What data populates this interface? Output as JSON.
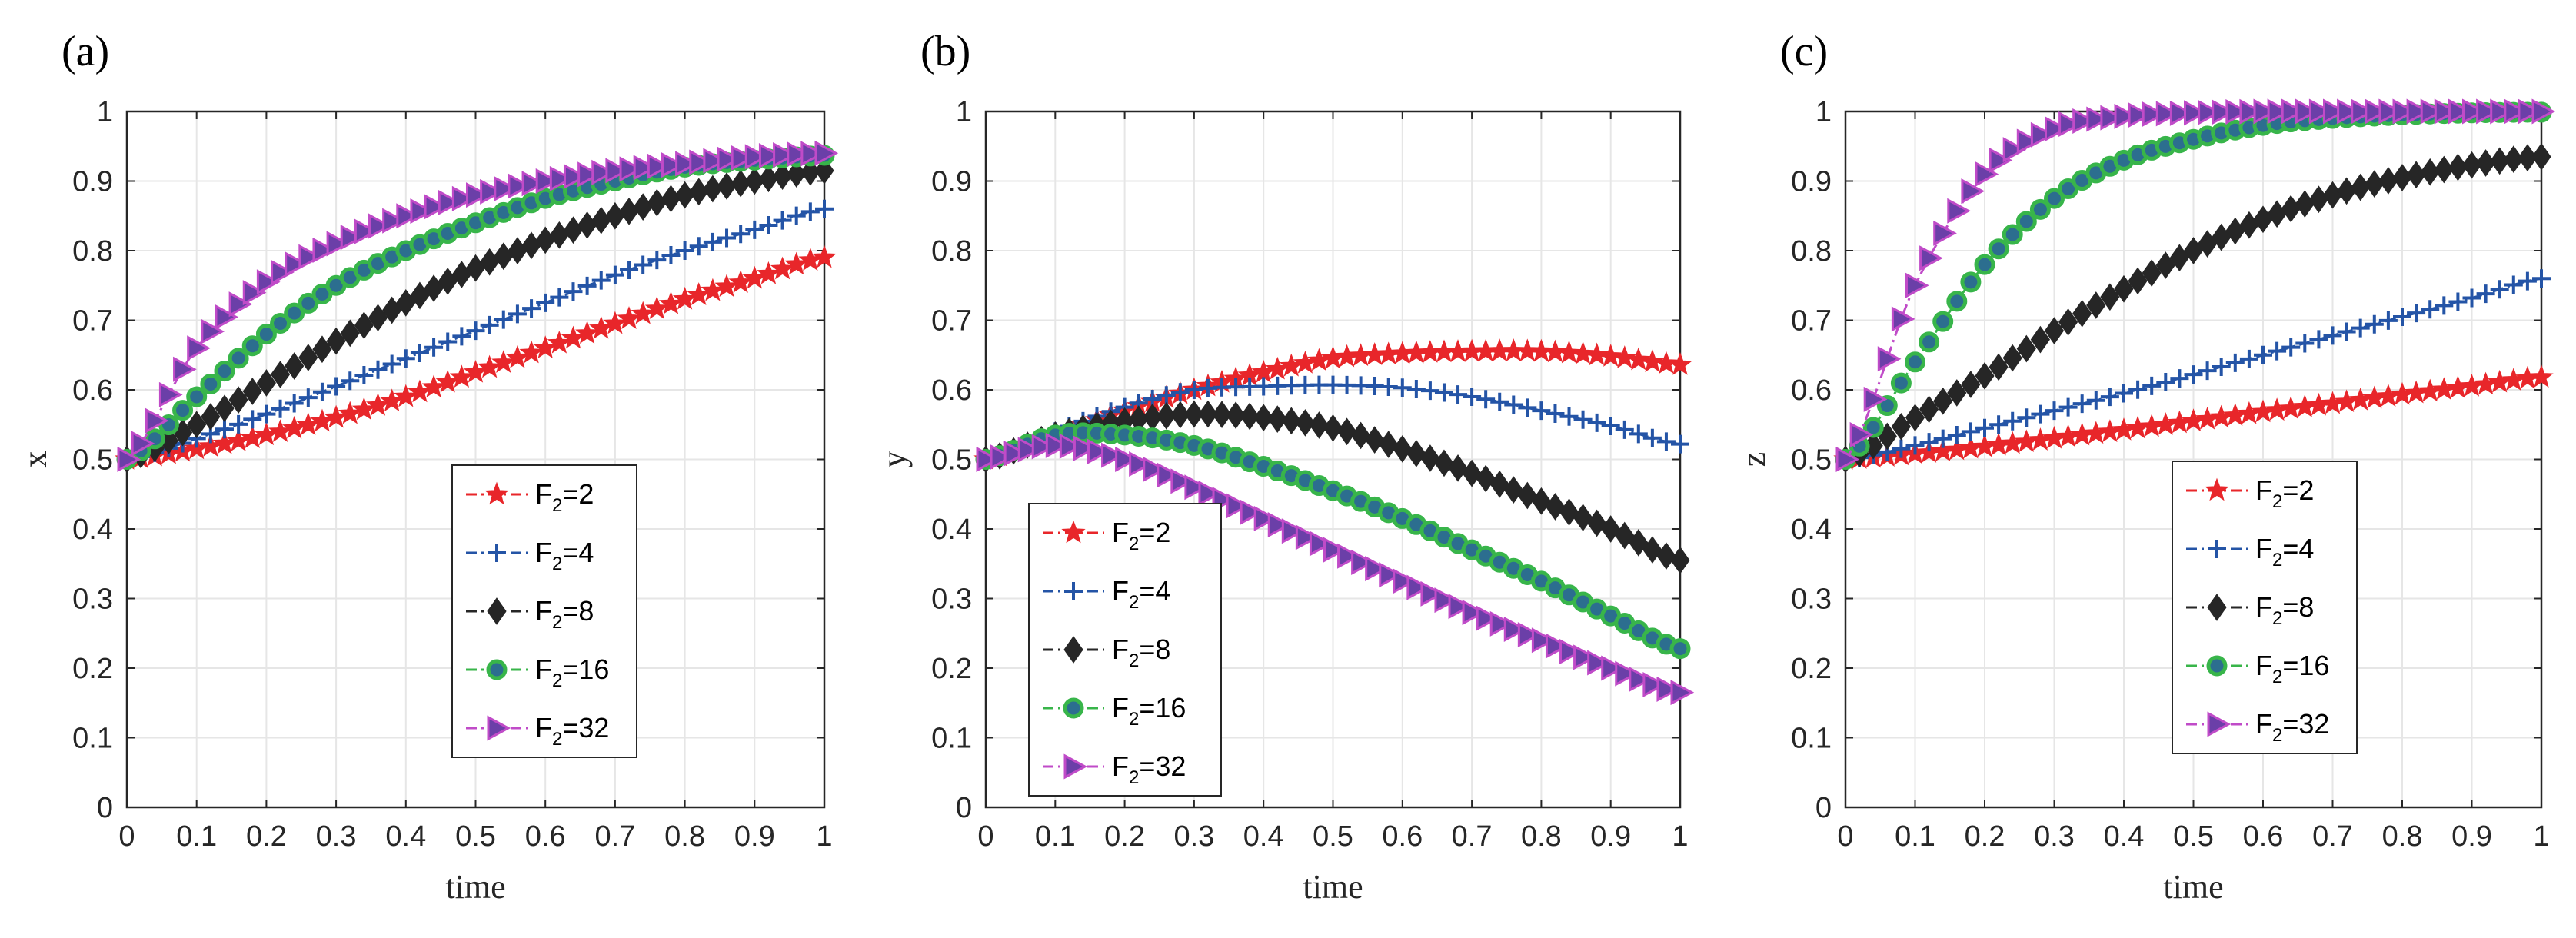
{
  "chart_data": [
    {
      "type": "line",
      "panel_label": "(a)",
      "xlabel": "time",
      "ylabel": "x",
      "xlim": [
        0,
        1
      ],
      "ylim": [
        0,
        1
      ],
      "xticks": [
        "0",
        "0.1",
        "0.2",
        "0.3",
        "0.4",
        "0.5",
        "0.6",
        "0.7",
        "0.8",
        "0.9",
        "1"
      ],
      "yticks": [
        "0",
        "0.1",
        "0.2",
        "0.3",
        "0.4",
        "0.5",
        "0.6",
        "0.7",
        "0.8",
        "0.9",
        "1"
      ],
      "grid": true,
      "legend_position": "lower-center",
      "x": [
        0,
        0.1,
        0.2,
        0.3,
        0.4,
        0.5,
        0.6,
        0.7,
        0.8,
        0.9,
        1.0
      ],
      "series": [
        {
          "name": "F2=2",
          "legend_base": "F",
          "legend_sub": "2",
          "legend_rest": "=2",
          "color": "#e8262a",
          "marker": "star",
          "values": [
            0.5,
            0.515,
            0.535,
            0.56,
            0.59,
            0.625,
            0.66,
            0.695,
            0.73,
            0.76,
            0.79
          ]
        },
        {
          "name": "F2=4",
          "legend_base": "F",
          "legend_sub": "2",
          "legend_rest": "=4",
          "color": "#2454a6",
          "marker": "plus",
          "values": [
            0.5,
            0.53,
            0.565,
            0.605,
            0.645,
            0.685,
            0.725,
            0.765,
            0.8,
            0.83,
            0.86
          ]
        },
        {
          "name": "F2=8",
          "legend_base": "F",
          "legend_sub": "2",
          "legend_rest": "=8",
          "color": "#262626",
          "marker": "diamond",
          "values": [
            0.5,
            0.55,
            0.61,
            0.67,
            0.725,
            0.775,
            0.815,
            0.85,
            0.88,
            0.9,
            0.915
          ]
        },
        {
          "name": "F2=16",
          "legend_base": "F",
          "legend_sub": "2",
          "legend_rest": "=16",
          "color": "#38b54a",
          "marker": "circle",
          "values": [
            0.5,
            0.59,
            0.68,
            0.75,
            0.8,
            0.84,
            0.875,
            0.9,
            0.92,
            0.93,
            0.937
          ]
        },
        {
          "name": "F2=32",
          "legend_base": "F",
          "legend_sub": "2",
          "legend_rest": "=32",
          "color": "#c04bc8",
          "marker": "triangle",
          "values": [
            0.5,
            0.66,
            0.755,
            0.81,
            0.85,
            0.88,
            0.9,
            0.915,
            0.925,
            0.935,
            0.94
          ]
        }
      ]
    },
    {
      "type": "line",
      "panel_label": "(b)",
      "xlabel": "time",
      "ylabel": "y",
      "xlim": [
        0,
        1
      ],
      "ylim": [
        0,
        1
      ],
      "xticks": [
        "0",
        "0.1",
        "0.2",
        "0.3",
        "0.4",
        "0.5",
        "0.6",
        "0.7",
        "0.8",
        "0.9",
        "1"
      ],
      "yticks": [
        "0",
        "0.1",
        "0.2",
        "0.3",
        "0.4",
        "0.5",
        "0.6",
        "0.7",
        "0.8",
        "0.9",
        "1"
      ],
      "grid": true,
      "legend_position": "lower-left",
      "x": [
        0,
        0.1,
        0.2,
        0.3,
        0.4,
        0.5,
        0.6,
        0.7,
        0.8,
        0.9,
        1.0
      ],
      "series": [
        {
          "name": "F2=2",
          "legend_base": "F",
          "legend_sub": "2",
          "legend_rest": "=2",
          "color": "#e8262a",
          "marker": "star",
          "values": [
            0.5,
            0.535,
            0.57,
            0.6,
            0.625,
            0.645,
            0.652,
            0.655,
            0.655,
            0.648,
            0.636
          ]
        },
        {
          "name": "F2=4",
          "legend_base": "F",
          "legend_sub": "2",
          "legend_rest": "=4",
          "color": "#2454a6",
          "marker": "plus",
          "values": [
            0.5,
            0.54,
            0.575,
            0.6,
            0.605,
            0.607,
            0.603,
            0.59,
            0.57,
            0.548,
            0.522
          ]
        },
        {
          "name": "F2=8",
          "legend_base": "F",
          "legend_sub": "2",
          "legend_rest": "=8",
          "color": "#262626",
          "marker": "diamond",
          "values": [
            0.5,
            0.535,
            0.555,
            0.565,
            0.56,
            0.545,
            0.515,
            0.48,
            0.44,
            0.4,
            0.355
          ]
        },
        {
          "name": "F2=16",
          "legend_base": "F",
          "legend_sub": "2",
          "legend_rest": "=16",
          "color": "#38b54a",
          "marker": "circle",
          "values": [
            0.5,
            0.535,
            0.535,
            0.52,
            0.49,
            0.455,
            0.415,
            0.37,
            0.325,
            0.275,
            0.228
          ]
        },
        {
          "name": "F2=32",
          "legend_base": "F",
          "legend_sub": "2",
          "legend_rest": "=32",
          "color": "#c04bc8",
          "marker": "triangle",
          "values": [
            0.5,
            0.52,
            0.5,
            0.46,
            0.415,
            0.37,
            0.325,
            0.28,
            0.24,
            0.2,
            0.165
          ]
        }
      ]
    },
    {
      "type": "line",
      "panel_label": "(c)",
      "xlabel": "time",
      "ylabel": "z",
      "xlim": [
        0,
        1
      ],
      "ylim": [
        0,
        1
      ],
      "xticks": [
        "0",
        "0.1",
        "0.2",
        "0.3",
        "0.4",
        "0.5",
        "0.6",
        "0.7",
        "0.8",
        "0.9",
        "1"
      ],
      "yticks": [
        "0",
        "0.1",
        "0.2",
        "0.3",
        "0.4",
        "0.5",
        "0.6",
        "0.7",
        "0.8",
        "0.9",
        "1"
      ],
      "grid": true,
      "legend_position": "lower-center",
      "x": [
        0,
        0.1,
        0.2,
        0.3,
        0.4,
        0.5,
        0.6,
        0.7,
        0.8,
        0.9,
        1.0
      ],
      "series": [
        {
          "name": "F2=2",
          "legend_base": "F",
          "legend_sub": "2",
          "legend_rest": "=2",
          "color": "#e8262a",
          "marker": "star",
          "values": [
            0.5,
            0.508,
            0.518,
            0.53,
            0.542,
            0.555,
            0.568,
            0.58,
            0.593,
            0.605,
            0.618
          ]
        },
        {
          "name": "F2=4",
          "legend_base": "F",
          "legend_sub": "2",
          "legend_rest": "=4",
          "color": "#2454a6",
          "marker": "plus",
          "values": [
            0.5,
            0.52,
            0.545,
            0.57,
            0.595,
            0.622,
            0.65,
            0.678,
            0.705,
            0.732,
            0.76
          ]
        },
        {
          "name": "F2=8",
          "legend_base": "F",
          "legend_sub": "2",
          "legend_rest": "=8",
          "color": "#262626",
          "marker": "diamond",
          "values": [
            0.5,
            0.56,
            0.62,
            0.685,
            0.745,
            0.8,
            0.845,
            0.88,
            0.905,
            0.923,
            0.935
          ]
        },
        {
          "name": "F2=16",
          "legend_base": "F",
          "legend_sub": "2",
          "legend_rest": "=16",
          "color": "#38b54a",
          "marker": "circle",
          "values": [
            0.5,
            0.64,
            0.78,
            0.875,
            0.93,
            0.96,
            0.98,
            0.99,
            0.995,
            0.998,
            0.999
          ]
        },
        {
          "name": "F2=32",
          "legend_base": "F",
          "legend_sub": "2",
          "legend_rest": "=32",
          "color": "#c04bc8",
          "marker": "triangle",
          "values": [
            0.5,
            0.75,
            0.91,
            0.975,
            0.993,
            0.998,
            1.0,
            1.0,
            1.0,
            1.0,
            1.0
          ]
        }
      ]
    }
  ]
}
